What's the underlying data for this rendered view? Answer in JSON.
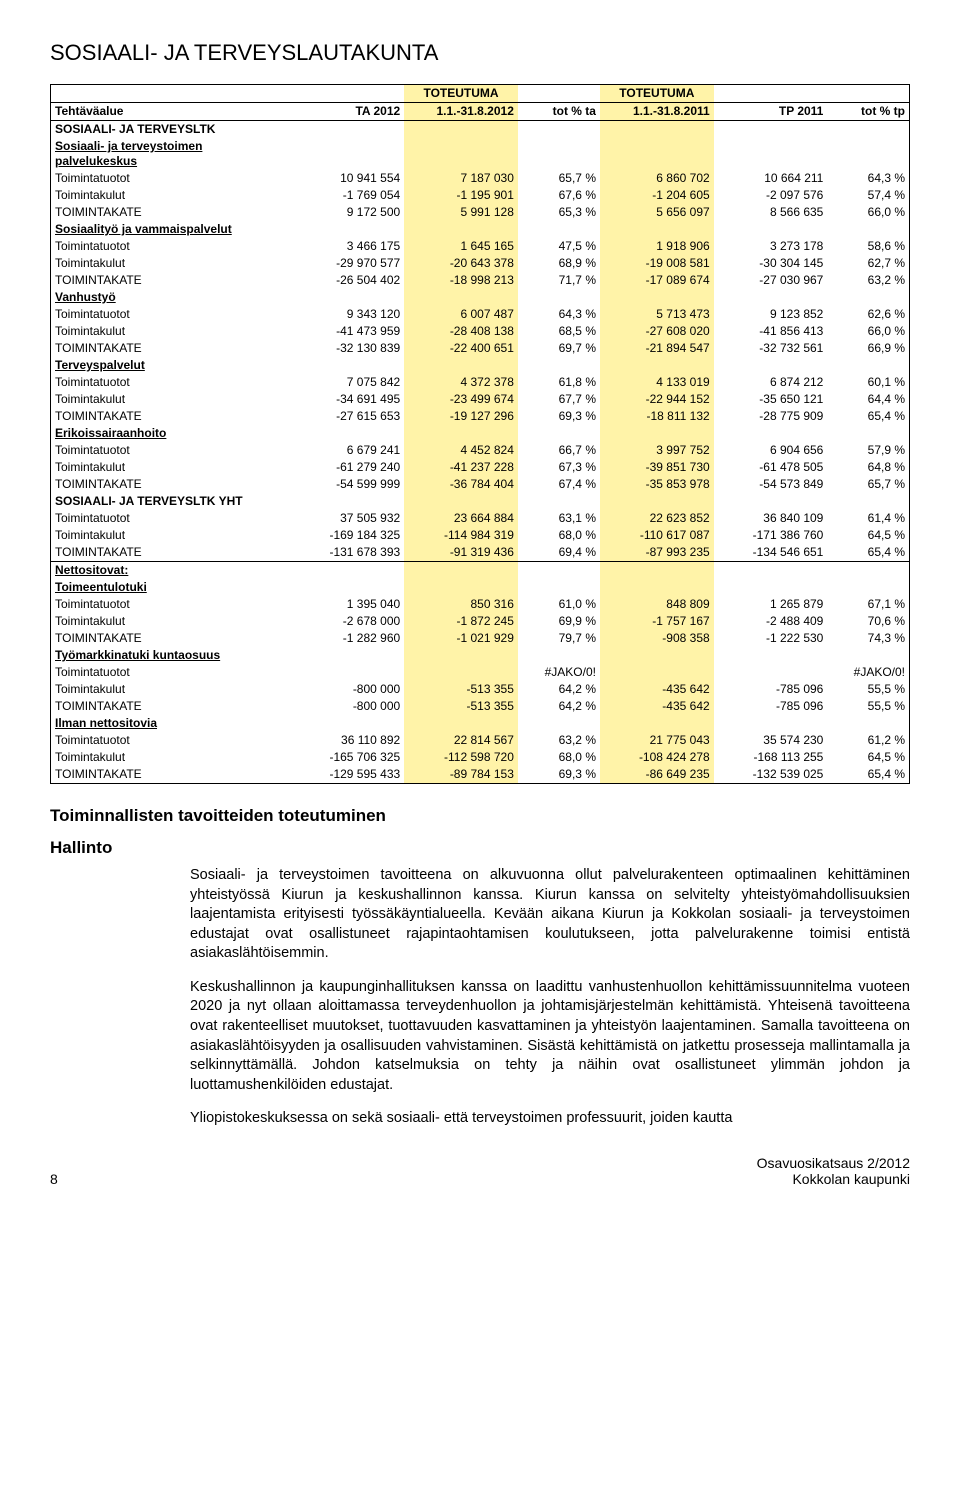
{
  "title": "SOSIAALI- JA TERVEYSLAUTAKUNTA",
  "table": {
    "header1": [
      "",
      "",
      "TOTEUTUMA",
      "",
      "TOTEUTUMA",
      "",
      ""
    ],
    "header2": [
      "Tehtäväalue",
      "TA 2012",
      "1.1.-31.8.2012",
      "tot % ta",
      "1.1.-31.8.2011",
      "TP 2011",
      "tot % tp"
    ],
    "highlight_cols": [
      2,
      4
    ],
    "sections": [
      {
        "label": "SOSIAALI- JA TERVEYSLTK",
        "underline": false,
        "sub": [
          {
            "label": "Sosiaali- ja terveystoimen palvelukeskus",
            "underline": true,
            "rows": [
              [
                "Toimintatuotot",
                "10 941 554",
                "7 187 030",
                "65,7 %",
                "6 860 702",
                "10 664 211",
                "64,3 %"
              ],
              [
                "Toimintakulut",
                "-1 769 054",
                "-1 195 901",
                "67,6 %",
                "-1 204 605",
                "-2 097 576",
                "57,4 %"
              ],
              [
                "TOIMINTAKATE",
                "9 172 500",
                "5 991 128",
                "65,3 %",
                "5 656 097",
                "8 566 635",
                "66,0 %"
              ]
            ]
          },
          {
            "label": "Sosiaalityö ja vammaispalvelut",
            "underline": true,
            "rows": [
              [
                "Toimintatuotot",
                "3 466 175",
                "1 645 165",
                "47,5 %",
                "1 918 906",
                "3 273 178",
                "58,6 %"
              ],
              [
                "Toimintakulut",
                "-29 970 577",
                "-20 643 378",
                "68,9 %",
                "-19 008 581",
                "-30 304 145",
                "62,7 %"
              ],
              [
                "TOIMINTAKATE",
                "-26 504 402",
                "-18 998 213",
                "71,7 %",
                "-17 089 674",
                "-27 030 967",
                "63,2 %"
              ]
            ]
          },
          {
            "label": "Vanhustyö",
            "underline": true,
            "rows": [
              [
                "Toimintatuotot",
                "9 343 120",
                "6 007 487",
                "64,3 %",
                "5 713 473",
                "9 123 852",
                "62,6 %"
              ],
              [
                "Toimintakulut",
                "-41 473 959",
                "-28 408 138",
                "68,5 %",
                "-27 608 020",
                "-41 856 413",
                "66,0 %"
              ],
              [
                "TOIMINTAKATE",
                "-32 130 839",
                "-22 400 651",
                "69,7 %",
                "-21 894 547",
                "-32 732 561",
                "66,9 %"
              ]
            ]
          },
          {
            "label": "Terveyspalvelut",
            "underline": true,
            "rows": [
              [
                "Toimintatuotot",
                "7 075 842",
                "4 372 378",
                "61,8 %",
                "4 133 019",
                "6 874 212",
                "60,1 %"
              ],
              [
                "Toimintakulut",
                "-34 691 495",
                "-23 499 674",
                "67,7 %",
                "-22 944 152",
                "-35 650 121",
                "64,4 %"
              ],
              [
                "TOIMINTAKATE",
                "-27 615 653",
                "-19 127 296",
                "69,3 %",
                "-18 811 132",
                "-28 775 909",
                "65,4 %"
              ]
            ]
          },
          {
            "label": "Erikoissairaanhoito",
            "underline": true,
            "rows": [
              [
                "Toimintatuotot",
                "6 679 241",
                "4 452 824",
                "66,7 %",
                "3 997 752",
                "6 904 656",
                "57,9 %"
              ],
              [
                "Toimintakulut",
                "-61 279 240",
                "-41 237 228",
                "67,3 %",
                "-39 851 730",
                "-61 478 505",
                "64,8 %"
              ],
              [
                "TOIMINTAKATE",
                "-54 599 999",
                "-36 784 404",
                "67,4 %",
                "-35 853 978",
                "-54 573 849",
                "65,7 %"
              ]
            ]
          },
          {
            "label": "SOSIAALI- JA TERVEYSLTK YHT",
            "underline": false,
            "rows": [
              [
                "Toimintatuotot",
                "37 505 932",
                "23 664 884",
                "63,1 %",
                "22 623 852",
                "36 840 109",
                "61,4 %"
              ],
              [
                "Toimintakulut",
                "-169 184 325",
                "-114 984 319",
                "68,0 %",
                "-110 617 087",
                "-171 386 760",
                "64,5 %"
              ],
              [
                "TOIMINTAKATE",
                "-131 678 393",
                "-91 319 436",
                "69,4 %",
                "-87 993 235",
                "-134 546 651",
                "65,4 %"
              ]
            ],
            "divider_after": true
          },
          {
            "label": "Nettositovat:",
            "underline": true,
            "rows": []
          },
          {
            "label": "Toimeentulotuki",
            "underline": true,
            "rows": [
              [
                "Toimintatuotot",
                "1 395 040",
                "850 316",
                "61,0 %",
                "848 809",
                "1 265 879",
                "67,1 %"
              ],
              [
                "Toimintakulut",
                "-2 678 000",
                "-1 872 245",
                "69,9 %",
                "-1 757 167",
                "-2 488 409",
                "70,6 %"
              ],
              [
                "TOIMINTAKATE",
                "-1 282 960",
                "-1 021 929",
                "79,7 %",
                "-908 358",
                "-1 222 530",
                "74,3 %"
              ]
            ]
          },
          {
            "label": "Työmarkkinatuki kuntaosuus",
            "underline": true,
            "rows": [
              [
                "Toimintatuotot",
                "",
                "",
                "#JAKO/0!",
                "",
                "",
                "#JAKO/0!"
              ],
              [
                "Toimintakulut",
                "-800 000",
                "-513 355",
                "64,2 %",
                "-435 642",
                "-785 096",
                "55,5 %"
              ],
              [
                "TOIMINTAKATE",
                "-800 000",
                "-513 355",
                "64,2 %",
                "-435 642",
                "-785 096",
                "55,5 %"
              ]
            ]
          },
          {
            "label": "Ilman nettositovia",
            "underline": true,
            "rows": [
              [
                "Toimintatuotot",
                "36 110 892",
                "22 814 567",
                "63,2 %",
                "21 775 043",
                "35 574 230",
                "61,2 %"
              ],
              [
                "Toimintakulut",
                "-165 706 325",
                "-112 598 720",
                "68,0 %",
                "-108 424 278",
                "-168 113 255",
                "64,5 %"
              ],
              [
                "TOIMINTAKATE",
                "-129 595 433",
                "-89 784 153",
                "69,3 %",
                "-86 649 235",
                "-132 539 025",
                "65,4 %"
              ]
            ]
          }
        ]
      }
    ]
  },
  "subheading": "Toiminnallisten tavoitteiden toteutuminen",
  "subheading2": "Hallinto",
  "paragraphs": [
    "Sosiaali- ja terveystoimen tavoitteena on alkuvuonna ollut palvelurakenteen optimaalinen kehittäminen yhteistyössä Kiurun ja keskushallinnon kanssa. Kiurun kanssa on selvitelty yhteistyömahdollisuuksien laajentamista erityisesti työssäkäyntialueella. Kevään aikana Kiurun ja Kokkolan sosiaali- ja terveystoimen edustajat ovat osallistuneet rajapintaohtamisen koulutukseen, jotta palvelurakenne toimisi entistä asiakaslähtöisemmin.",
    "Keskushallinnon ja kaupunginhallituksen kanssa on laadittu vanhustenhuollon kehittämissuunnitelma vuoteen 2020 ja nyt ollaan aloittamassa terveydenhuollon ja johtamisjärjestelmän kehittämistä. Yhteisenä tavoitteena ovat rakenteelliset muutokset, tuottavuuden kasvattaminen ja yhteistyön laajentaminen. Samalla tavoitteena on asiakaslähtöisyyden ja osallisuuden vahvistaminen. Sisästä kehittämistä on jatkettu prosesseja mallintamalla ja selkinnyttämällä. Johdon katselmuksia on tehty ja näihin ovat osallistuneet ylimmän johdon ja luottamushenkilöiden edustajat.",
    "Yliopistokeskuksessa on sekä sosiaali- että terveystoimen professuurit, joiden kautta"
  ],
  "footer": {
    "page_num": "8",
    "right1": "Osavuosikatsaus 2/2012",
    "right2": "Kokkolan kaupunki"
  }
}
